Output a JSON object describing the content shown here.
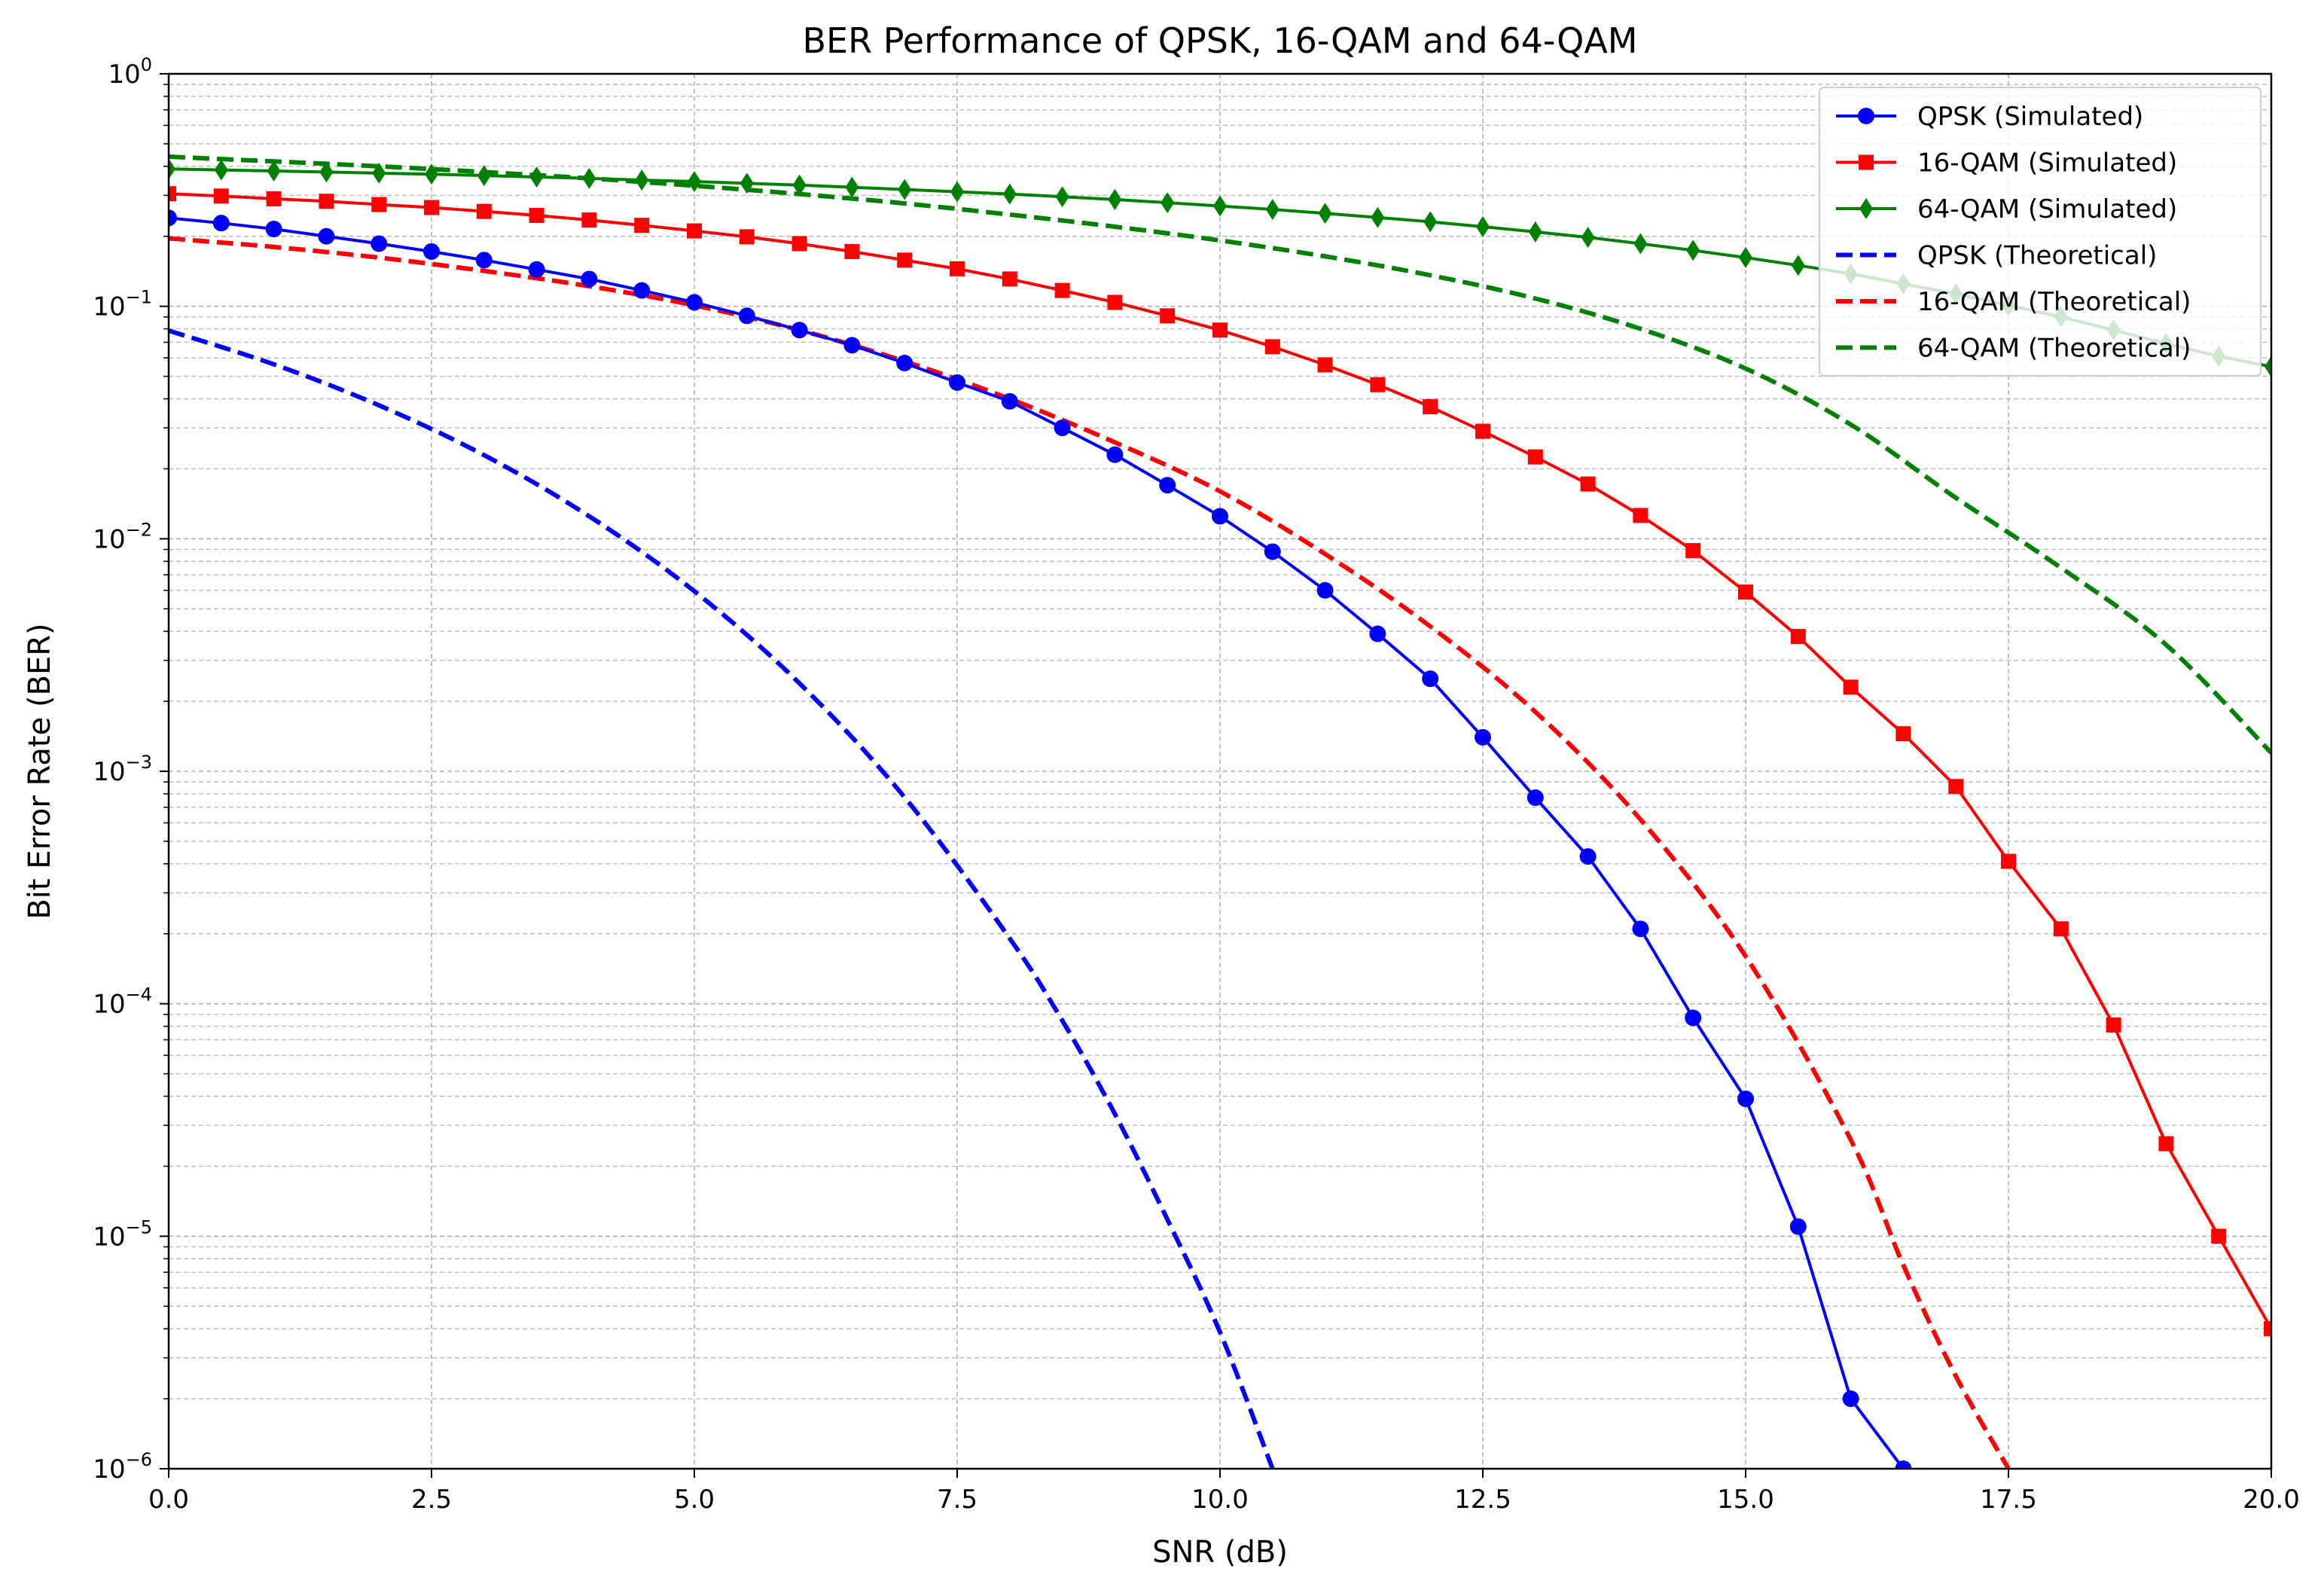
{
  "chart_data": {
    "type": "line",
    "title": "BER Performance of QPSK, 16-QAM and 64-QAM",
    "xlabel": "SNR (dB)",
    "ylabel": "Bit Error Rate (BER)",
    "xlim": [
      0,
      20
    ],
    "ylim": [
      1e-06,
      1
    ],
    "yscale": "log",
    "grid": "both (major and minor), dashed, light gray",
    "legend_position": "top-right",
    "x_ticks": [
      0,
      2.5,
      5,
      7.5,
      10,
      12.5,
      15,
      17.5,
      20
    ],
    "x_tick_labels": [
      "0.0",
      "2.5",
      "5.0",
      "7.5",
      "10.0",
      "12.5",
      "15.0",
      "17.5",
      "20.0"
    ],
    "y_ticks": [
      {
        "value": 1,
        "base": "10",
        "exp": "0"
      },
      {
        "value": 0.1,
        "base": "10",
        "exp": "−1"
      },
      {
        "value": 0.01,
        "base": "10",
        "exp": "−2"
      },
      {
        "value": 0.001,
        "base": "10",
        "exp": "−3"
      },
      {
        "value": 0.0001,
        "base": "10",
        "exp": "−4"
      },
      {
        "value": 1e-05,
        "base": "10",
        "exp": "−5"
      },
      {
        "value": 1e-06,
        "base": "10",
        "exp": "−6"
      }
    ],
    "series": [
      {
        "name": "QPSK (Simulated)",
        "color": "#0000ff",
        "style": "solid",
        "marker": "circle",
        "x": [
          0,
          0.5,
          1,
          1.5,
          2,
          2.5,
          3,
          3.5,
          4,
          4.5,
          5,
          5.5,
          6,
          6.5,
          7,
          7.5,
          8,
          8.5,
          9,
          9.5,
          10,
          10.5,
          11,
          11.5,
          12,
          12.5,
          13,
          13.5,
          14,
          14.5,
          15,
          15.5,
          16,
          16.5
        ],
        "y": [
          0.24,
          0.228,
          0.215,
          0.2,
          0.186,
          0.172,
          0.158,
          0.144,
          0.131,
          0.117,
          0.104,
          0.091,
          0.079,
          0.068,
          0.057,
          0.047,
          0.039,
          0.03,
          0.023,
          0.017,
          0.0125,
          0.0088,
          0.006,
          0.0039,
          0.0025,
          0.0014,
          0.00077,
          0.00043,
          0.00021,
          8.7e-05,
          3.9e-05,
          1.1e-05,
          2e-06,
          1e-06
        ]
      },
      {
        "name": "16-QAM (Simulated)",
        "color": "#ff0000",
        "style": "solid",
        "marker": "square",
        "x": [
          0,
          0.5,
          1,
          1.5,
          2,
          2.5,
          3,
          3.5,
          4,
          4.5,
          5,
          5.5,
          6,
          6.5,
          7,
          7.5,
          8,
          8.5,
          9,
          9.5,
          10,
          10.5,
          11,
          11.5,
          12,
          12.5,
          13,
          13.5,
          14,
          14.5,
          15,
          15.5,
          16,
          16.5,
          17,
          17.5,
          18,
          18.5,
          19,
          19.5,
          20
        ],
        "y": [
          0.305,
          0.298,
          0.29,
          0.283,
          0.274,
          0.266,
          0.256,
          0.246,
          0.235,
          0.223,
          0.211,
          0.199,
          0.186,
          0.172,
          0.158,
          0.145,
          0.131,
          0.117,
          0.104,
          0.091,
          0.079,
          0.067,
          0.056,
          0.046,
          0.037,
          0.029,
          0.0225,
          0.0172,
          0.0126,
          0.0089,
          0.0059,
          0.0038,
          0.0023,
          0.00145,
          0.00086,
          0.00041,
          0.00021,
          8.1e-05,
          2.5e-05,
          1e-05,
          4e-06
        ]
      },
      {
        "name": "64-QAM (Simulated)",
        "color": "#008000",
        "style": "solid",
        "marker": "thin_diamond",
        "x": [
          0,
          0.5,
          1,
          1.5,
          2,
          2.5,
          3,
          3.5,
          4,
          4.5,
          5,
          5.5,
          6,
          6.5,
          7,
          7.5,
          8,
          8.5,
          9,
          9.5,
          10,
          10.5,
          11,
          11.5,
          12,
          12.5,
          13,
          13.5,
          14,
          14.5,
          15,
          15.5,
          16,
          16.5,
          17,
          17.5,
          18,
          18.5,
          19,
          19.5,
          20
        ],
        "y": [
          0.39,
          0.386,
          0.382,
          0.378,
          0.374,
          0.37,
          0.365,
          0.36,
          0.355,
          0.349,
          0.344,
          0.338,
          0.332,
          0.325,
          0.318,
          0.311,
          0.304,
          0.296,
          0.288,
          0.279,
          0.27,
          0.261,
          0.251,
          0.241,
          0.231,
          0.22,
          0.209,
          0.198,
          0.186,
          0.174,
          0.162,
          0.15,
          0.138,
          0.125,
          0.113,
          0.101,
          0.09,
          0.079,
          0.069,
          0.061,
          0.055
        ]
      },
      {
        "name": "QPSK (Theoretical)",
        "color": "#0000ff",
        "style": "dashed",
        "marker": "none",
        "x": [
          0,
          1,
          2,
          3,
          4,
          5,
          6,
          7,
          8,
          8.5,
          9,
          9.5,
          10,
          10.5
        ],
        "y": [
          0.0786,
          0.0563,
          0.0375,
          0.0229,
          0.0125,
          0.00595,
          0.00239,
          0.000773,
          0.000191,
          8.47e-05,
          3.36e-05,
          1.18e-05,
          3.87e-06,
          1e-06
        ]
      },
      {
        "name": "16-QAM (Theoretical)",
        "color": "#ff0000",
        "style": "dashed",
        "marker": "none",
        "x": [
          0,
          1,
          2,
          3,
          4,
          5,
          6,
          7,
          8,
          9,
          10,
          11,
          12,
          13,
          14,
          15,
          16,
          16.5,
          17,
          17.5
        ],
        "y": [
          0.196,
          0.18,
          0.162,
          0.142,
          0.122,
          0.101,
          0.079,
          0.058,
          0.04,
          0.026,
          0.016,
          0.0086,
          0.0042,
          0.0018,
          0.00062,
          0.00016,
          2.6e-05,
          7.5e-06,
          2.5e-06,
          1e-06
        ]
      },
      {
        "name": "64-QAM (Theoretical)",
        "color": "#008000",
        "style": "dashed",
        "marker": "none",
        "x": [
          0,
          1,
          2,
          3,
          4,
          5,
          6,
          7,
          8,
          9,
          10,
          11,
          12,
          13,
          14,
          15,
          16,
          17,
          18,
          19,
          20
        ],
        "y": [
          0.44,
          0.42,
          0.4,
          0.378,
          0.355,
          0.33,
          0.304,
          0.277,
          0.248,
          0.22,
          0.192,
          0.164,
          0.136,
          0.108,
          0.08,
          0.054,
          0.031,
          0.015,
          0.0075,
          0.0035,
          0.0012
        ]
      }
    ]
  }
}
